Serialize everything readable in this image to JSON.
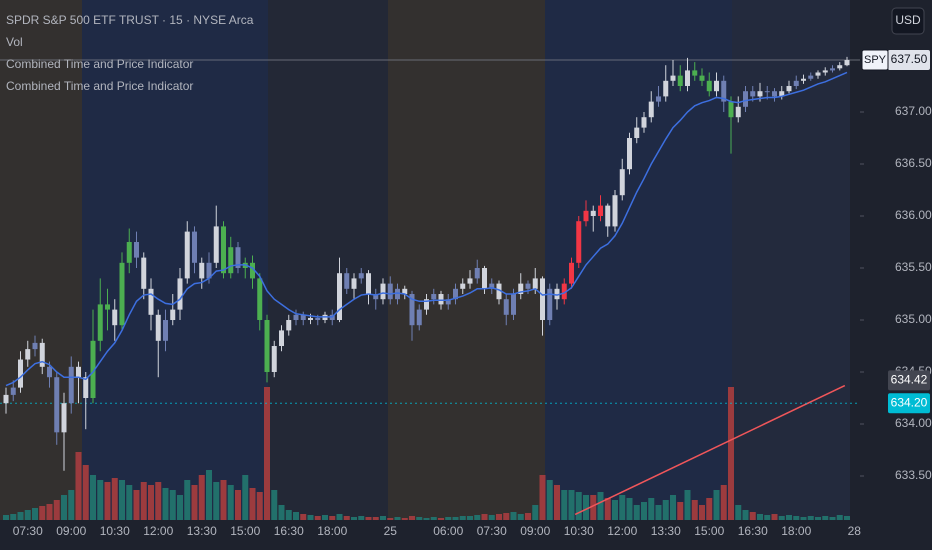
{
  "chart_data": {
    "type": "candlestick",
    "title": "SPDR S&P 500 ETF TRUST · 15 · NYSE Arca",
    "indicators": [
      "Vol",
      "Combined Time and Price Indicator",
      "Combined Time and Price Indicator"
    ],
    "currency": "USD",
    "ylim": [
      633.077,
      638.077
    ],
    "yticks": [
      {
        "value": 633.5,
        "label": "633.50"
      },
      {
        "value": 634,
        "label": "634.00"
      },
      {
        "value": 634.5,
        "label": "634.50"
      },
      {
        "value": 635,
        "label": "635.00"
      },
      {
        "value": 635.5,
        "label": "635.50"
      },
      {
        "value": 636,
        "label": "636.00"
      },
      {
        "value": 636.5,
        "label": "636.50"
      },
      {
        "value": 637,
        "label": "637.00"
      }
    ],
    "price_tags": [
      {
        "value": 637.5,
        "label": "637.50",
        "name": "SPY",
        "color": "#e0e3eb",
        "text_color": "#131722"
      },
      {
        "value": 634.42,
        "label": "634.42",
        "color": "#434651",
        "text_color": "#ffffff"
      },
      {
        "value": 634.2,
        "label": "634.20",
        "color": "#00bcd4",
        "text_color": "#ffffff"
      }
    ],
    "categories": [
      null,
      null,
      null,
      "07:30",
      null,
      null,
      null,
      null,
      null,
      "09:00",
      null,
      null,
      null,
      null,
      null,
      "10:30",
      null,
      null,
      null,
      null,
      null,
      "12:00",
      null,
      null,
      null,
      null,
      null,
      "13:30",
      null,
      null,
      null,
      null,
      null,
      "15:00",
      null,
      null,
      null,
      null,
      null,
      "16:30",
      null,
      null,
      null,
      null,
      null,
      "18:00",
      null,
      null,
      null,
      null,
      null,
      null,
      null,
      "25",
      null,
      null,
      null,
      null,
      null,
      null,
      null,
      "06:00",
      null,
      null,
      null,
      null,
      null,
      "07:30",
      null,
      null,
      null,
      null,
      null,
      "09:00",
      null,
      null,
      null,
      null,
      null,
      "10:30",
      null,
      null,
      null,
      null,
      null,
      "12:00",
      null,
      null,
      null,
      null,
      null,
      "13:30",
      null,
      null,
      null,
      null,
      null,
      "15:00",
      null,
      null,
      null,
      null,
      null,
      "16:30",
      null,
      null,
      null,
      null,
      null,
      "18:00",
      null,
      null,
      null,
      null,
      null,
      null,
      null,
      "28"
    ],
    "ohlc": [
      [
        634.2,
        634.35,
        634.1,
        634.28
      ],
      [
        634.28,
        634.42,
        634.22,
        634.35
      ],
      [
        634.35,
        634.7,
        634.3,
        634.62
      ],
      [
        634.62,
        634.8,
        634.55,
        634.72
      ],
      [
        634.72,
        634.85,
        634.65,
        634.78
      ],
      [
        634.78,
        634.82,
        634.48,
        634.55
      ],
      [
        634.55,
        634.6,
        634.35,
        634.45
      ],
      [
        634.45,
        634.5,
        633.8,
        633.92
      ],
      [
        633.92,
        634.3,
        633.55,
        634.2
      ],
      [
        634.2,
        634.65,
        634.1,
        634.55
      ],
      [
        634.55,
        634.6,
        634.2,
        634.45
      ],
      [
        634.45,
        634.5,
        633.95,
        634.25
      ],
      [
        634.25,
        635.1,
        634.2,
        634.8
      ],
      [
        634.8,
        635.4,
        634.7,
        635.15
      ],
      [
        635.15,
        635.3,
        634.9,
        635.1
      ],
      [
        635.1,
        635.2,
        634.8,
        634.95
      ],
      [
        634.95,
        635.65,
        634.9,
        635.55
      ],
      [
        635.55,
        635.88,
        635.45,
        635.75
      ],
      [
        635.75,
        635.85,
        635.5,
        635.6
      ],
      [
        635.6,
        635.65,
        635.2,
        635.3
      ],
      [
        635.3,
        635.4,
        634.9,
        635.05
      ],
      [
        635.05,
        635.1,
        634.45,
        634.8
      ],
      [
        634.8,
        635.1,
        634.7,
        635.0
      ],
      [
        635.0,
        635.25,
        634.95,
        635.1
      ],
      [
        635.1,
        635.5,
        635.0,
        635.4
      ],
      [
        635.4,
        635.95,
        635.35,
        635.85
      ],
      [
        635.85,
        635.9,
        635.45,
        635.55
      ],
      [
        635.55,
        635.6,
        635.3,
        635.4
      ],
      [
        635.4,
        635.65,
        635.35,
        635.55
      ],
      [
        635.55,
        636.1,
        635.5,
        635.9
      ],
      [
        635.9,
        635.95,
        635.4,
        635.45
      ],
      [
        635.45,
        635.8,
        635.4,
        635.7
      ],
      [
        635.7,
        635.75,
        635.45,
        635.5
      ],
      [
        635.5,
        635.6,
        635.4,
        635.55
      ],
      [
        635.55,
        635.62,
        635.3,
        635.4
      ],
      [
        635.4,
        635.45,
        634.9,
        635.0
      ],
      [
        635.0,
        635.05,
        634.4,
        634.5
      ],
      [
        634.5,
        634.8,
        634.45,
        634.75
      ],
      [
        634.75,
        634.95,
        634.7,
        634.9
      ],
      [
        634.9,
        635.05,
        634.85,
        635.0
      ],
      [
        635.0,
        635.1,
        634.95,
        635.05
      ],
      [
        635.05,
        635.08,
        634.95,
        635.0
      ],
      [
        635.0,
        635.06,
        634.96,
        635.02
      ],
      [
        635.02,
        635.05,
        634.95,
        635.0
      ],
      [
        635.0,
        635.08,
        634.97,
        635.05
      ],
      [
        635.05,
        635.1,
        634.95,
        635.0
      ],
      [
        635.0,
        635.6,
        634.98,
        635.45
      ],
      [
        635.45,
        635.5,
        635.25,
        635.3
      ],
      [
        635.3,
        635.45,
        635.2,
        635.4
      ],
      [
        635.4,
        635.5,
        635.35,
        635.45
      ],
      [
        635.45,
        635.48,
        635.15,
        635.25
      ],
      [
        635.25,
        635.3,
        635.1,
        635.2
      ],
      [
        635.2,
        635.4,
        635.15,
        635.35
      ],
      [
        635.35,
        635.42,
        635.15,
        635.2
      ],
      [
        635.2,
        635.35,
        635.15,
        635.3
      ],
      [
        635.3,
        635.33,
        635.2,
        635.25
      ],
      [
        635.25,
        635.28,
        634.8,
        634.95
      ],
      [
        634.95,
        635.15,
        634.9,
        635.1
      ],
      [
        635.1,
        635.25,
        635.05,
        635.2
      ],
      [
        635.2,
        635.3,
        635.15,
        635.25
      ],
      [
        635.25,
        635.28,
        635.1,
        635.15
      ],
      [
        635.15,
        635.25,
        635.1,
        635.2
      ],
      [
        635.2,
        635.35,
        635.15,
        635.3
      ],
      [
        635.3,
        635.4,
        635.25,
        635.35
      ],
      [
        635.35,
        635.48,
        635.3,
        635.4
      ],
      [
        635.4,
        635.58,
        635.35,
        635.5
      ],
      [
        635.5,
        635.52,
        635.25,
        635.3
      ],
      [
        635.3,
        635.4,
        635.25,
        635.35
      ],
      [
        635.35,
        635.38,
        635.15,
        635.2
      ],
      [
        635.2,
        635.25,
        634.95,
        635.05
      ],
      [
        635.05,
        635.3,
        635.0,
        635.25
      ],
      [
        635.25,
        635.45,
        635.2,
        635.35
      ],
      [
        635.35,
        635.38,
        635.25,
        635.3
      ],
      [
        635.3,
        635.5,
        635.25,
        635.4
      ],
      [
        635.4,
        635.42,
        634.85,
        635.0
      ],
      [
        635.0,
        635.35,
        634.95,
        635.3
      ],
      [
        635.3,
        635.35,
        635.1,
        635.2
      ],
      [
        635.2,
        635.4,
        635.15,
        635.35
      ],
      [
        635.35,
        635.6,
        635.3,
        635.55
      ],
      [
        635.55,
        636.0,
        635.5,
        635.95
      ],
      [
        635.95,
        636.15,
        635.9,
        636.05
      ],
      [
        636.05,
        636.1,
        635.85,
        636.0
      ],
      [
        636.0,
        636.2,
        635.95,
        636.1
      ],
      [
        636.1,
        636.12,
        635.8,
        635.9
      ],
      [
        635.9,
        636.25,
        635.85,
        636.2
      ],
      [
        636.2,
        636.55,
        636.15,
        636.45
      ],
      [
        636.45,
        636.8,
        636.4,
        636.75
      ],
      [
        636.75,
        636.95,
        636.7,
        636.85
      ],
      [
        636.85,
        637.0,
        636.8,
        636.95
      ],
      [
        636.95,
        637.2,
        636.9,
        637.1
      ],
      [
        637.1,
        637.25,
        637.05,
        637.15
      ],
      [
        637.15,
        637.45,
        637.1,
        637.3
      ],
      [
        637.3,
        637.5,
        637.25,
        637.35
      ],
      [
        637.35,
        637.45,
        637.2,
        637.25
      ],
      [
        637.25,
        637.52,
        637.2,
        637.4
      ],
      [
        637.4,
        637.48,
        637.3,
        637.35
      ],
      [
        637.35,
        637.42,
        637.25,
        637.3
      ],
      [
        637.3,
        637.38,
        637.15,
        637.2
      ],
      [
        637.2,
        637.38,
        637.15,
        637.3
      ],
      [
        637.3,
        637.35,
        637.0,
        637.1
      ],
      [
        637.1,
        637.15,
        636.6,
        636.95
      ],
      [
        636.95,
        637.15,
        636.9,
        637.05
      ],
      [
        637.05,
        637.25,
        637.0,
        637.2
      ],
      [
        637.2,
        637.25,
        637.1,
        637.15
      ],
      [
        637.15,
        637.28,
        637.1,
        637.2
      ],
      [
        637.2,
        637.25,
        637.12,
        637.2
      ],
      [
        637.2,
        637.23,
        637.1,
        637.15
      ],
      [
        637.15,
        637.25,
        637.12,
        637.2
      ],
      [
        637.2,
        637.3,
        637.18,
        637.25
      ],
      [
        637.25,
        637.35,
        637.22,
        637.3
      ],
      [
        637.3,
        637.36,
        637.27,
        637.32
      ],
      [
        637.32,
        637.38,
        637.3,
        637.35
      ],
      [
        637.35,
        637.4,
        637.32,
        637.38
      ],
      [
        637.38,
        637.43,
        637.35,
        637.4
      ],
      [
        637.4,
        637.45,
        637.38,
        637.42
      ],
      [
        637.42,
        637.48,
        637.4,
        637.45
      ],
      [
        637.45,
        637.53,
        637.44,
        637.5
      ],
      null
    ],
    "candle_colors": [
      "w",
      "b",
      "w",
      "w",
      "b",
      "w",
      "b",
      "b",
      "w",
      "b",
      "w",
      "w",
      "g",
      "g",
      "g",
      "w",
      "g",
      "g",
      "b",
      "w",
      "w",
      "w",
      "b",
      "w",
      "w",
      "w",
      "b",
      "w",
      "b",
      "w",
      "g",
      "g",
      "b",
      "g",
      "g",
      "g",
      "g",
      "w",
      "w",
      "w",
      "b",
      "b",
      "w",
      "b",
      "w",
      "b",
      "w",
      "b",
      "w",
      "b",
      "w",
      "b",
      "w",
      "b",
      "b",
      "w",
      "b",
      "b",
      "w",
      "b",
      "w",
      "b",
      "b",
      "w",
      "w",
      "b",
      "w",
      "b",
      "w",
      "b",
      "b",
      "w",
      "b",
      "w",
      "w",
      "b",
      "w",
      "r",
      "r",
      "r",
      "r",
      "w",
      "r",
      "w",
      "w",
      "w",
      "w",
      "w",
      "w",
      "w",
      "b",
      "w",
      "w",
      "g",
      "w",
      "g",
      "g",
      "g",
      "w",
      "b",
      "g",
      "w",
      "b",
      "b",
      "w",
      "b",
      "b",
      "w",
      "w",
      "b",
      "w",
      "b",
      "w",
      "w",
      "b",
      "w",
      "w",
      null
    ],
    "palette": {
      "w": "#d1d4dc",
      "b": "#6f7fb3",
      "g": "#4caf50",
      "r": "#f23645"
    },
    "volume": [
      5,
      6,
      8,
      10,
      12,
      14,
      16,
      20,
      25,
      30,
      68,
      55,
      45,
      40,
      38,
      42,
      40,
      35,
      30,
      38,
      35,
      38,
      32,
      30,
      25,
      40,
      35,
      45,
      50,
      38,
      40,
      35,
      30,
      45,
      32,
      28,
      133,
      30,
      15,
      10,
      8,
      6,
      5,
      4,
      5,
      4,
      6,
      4,
      3,
      4,
      3,
      3,
      4,
      2,
      3,
      2,
      4,
      3,
      2,
      3,
      2,
      3,
      3,
      4,
      4,
      5,
      6,
      5,
      6,
      7,
      8,
      6,
      7,
      15,
      45,
      40,
      35,
      30,
      30,
      28,
      25,
      25,
      28,
      22,
      20,
      25,
      22,
      15,
      18,
      22,
      15,
      20,
      25,
      18,
      30,
      20,
      15,
      22,
      30,
      35,
      133,
      15,
      10,
      8,
      6,
      5,
      6,
      4,
      5,
      4,
      3,
      4,
      3,
      4,
      3,
      5,
      4,
      null
    ],
    "volume_ylim": [
      0,
      400
    ],
    "volume_colors": {
      "up": "#22706b",
      "down": "#9c3b3e"
    },
    "ma": [
      634.37,
      634.4,
      634.45,
      634.52,
      634.58,
      634.6,
      634.57,
      634.5,
      634.45,
      634.45,
      634.45,
      634.43,
      634.5,
      634.6,
      634.7,
      634.78,
      634.9,
      635.05,
      635.18,
      635.24,
      635.25,
      635.2,
      635.16,
      635.15,
      635.2,
      635.3,
      635.35,
      635.36,
      635.4,
      635.47,
      635.48,
      635.52,
      635.53,
      635.53,
      635.5,
      635.42,
      635.28,
      635.2,
      635.15,
      635.1,
      635.06,
      635.05,
      635.04,
      635.03,
      635.03,
      635.03,
      635.1,
      635.15,
      635.2,
      635.24,
      635.25,
      635.24,
      635.26,
      635.25,
      635.26,
      635.25,
      635.2,
      635.18,
      635.18,
      635.19,
      635.19,
      635.19,
      635.21,
      635.23,
      635.26,
      635.3,
      635.3,
      635.31,
      635.29,
      635.25,
      635.25,
      635.27,
      635.28,
      635.3,
      635.24,
      635.25,
      635.24,
      635.26,
      635.31,
      635.42,
      635.53,
      635.61,
      635.69,
      635.73,
      635.81,
      635.93,
      636.08,
      636.23,
      636.36,
      636.5,
      636.62,
      636.74,
      636.85,
      636.92,
      637.0,
      637.06,
      637.09,
      637.11,
      637.14,
      637.13,
      637.1,
      637.09,
      637.11,
      637.12,
      637.13,
      637.14,
      637.14,
      637.15,
      637.17,
      637.19,
      637.21,
      637.24,
      637.27,
      637.29,
      637.32,
      637.35,
      637.38,
      null
    ],
    "ma_color": "#3d6fe0",
    "trend_line": {
      "x": [
        78.5,
        115.7
      ],
      "values": [
        633.13,
        634.37
      ],
      "color": "#f0565a"
    }
  }
}
